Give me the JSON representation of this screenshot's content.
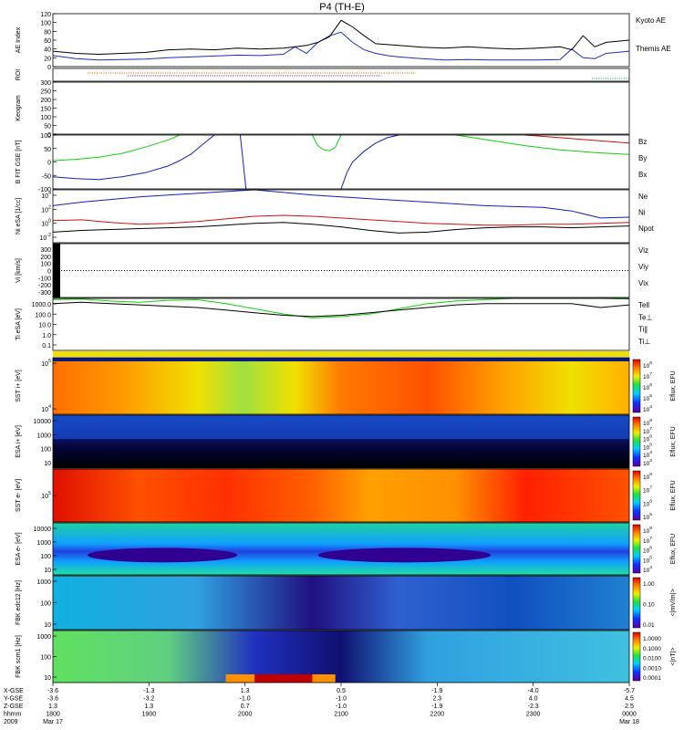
{
  "title": "P4 (TH-E)",
  "colors": {
    "kyoto": "#1a2fbf",
    "themis": "#000000",
    "red": "#d01010",
    "green": "#10d010",
    "blue": "#1020c0",
    "roi_a": "#e07a00",
    "roi_b": "#7a3a9a",
    "roi_c": "#20b0a0"
  },
  "chart_data": [
    {
      "type": "line",
      "name": "ae",
      "ylabel": "AE Index",
      "ylim": [
        0,
        120
      ],
      "yticks": [
        "0",
        "20",
        "40",
        "60",
        "80",
        "100",
        "120"
      ],
      "series": [
        {
          "name": "Kyoto AE",
          "color": "kyoto",
          "x": [
            0,
            0.04,
            0.08,
            0.12,
            0.16,
            0.2,
            0.24,
            0.28,
            0.32,
            0.36,
            0.4,
            0.42,
            0.44,
            0.46,
            0.48,
            0.5,
            0.52,
            0.54,
            0.56,
            0.58,
            0.6,
            0.64,
            0.68,
            0.72,
            0.76,
            0.8,
            0.84,
            0.88,
            0.9,
            0.92,
            0.94,
            0.96,
            1
          ],
          "y": [
            25,
            18,
            15,
            16,
            17,
            20,
            22,
            24,
            26,
            25,
            28,
            45,
            30,
            55,
            70,
            78,
            55,
            38,
            30,
            25,
            22,
            18,
            15,
            16,
            15,
            15,
            15,
            16,
            40,
            20,
            18,
            30,
            35
          ]
        },
        {
          "name": "Themis AE",
          "color": "themis",
          "x": [
            0,
            0.04,
            0.08,
            0.12,
            0.16,
            0.2,
            0.24,
            0.28,
            0.32,
            0.36,
            0.4,
            0.44,
            0.46,
            0.48,
            0.5,
            0.52,
            0.54,
            0.56,
            0.6,
            0.64,
            0.68,
            0.72,
            0.76,
            0.8,
            0.84,
            0.88,
            0.9,
            0.92,
            0.94,
            0.96,
            1
          ],
          "y": [
            35,
            30,
            28,
            30,
            32,
            38,
            40,
            38,
            42,
            40,
            42,
            48,
            55,
            68,
            105,
            90,
            70,
            52,
            48,
            44,
            42,
            45,
            42,
            40,
            42,
            45,
            38,
            70,
            45,
            55,
            60
          ]
        }
      ]
    },
    {
      "type": "scatter",
      "name": "roi",
      "ylabel": "ROI",
      "rows": [
        {
          "color": "roi_a",
          "x_start": 0.06,
          "x_end": 0.63
        },
        {
          "color": "roi_b",
          "x_start": 0.13,
          "x_end": 0.57
        },
        {
          "color": "roi_c",
          "x_start": 0.935,
          "x_end": 1.0
        }
      ]
    },
    {
      "type": "line",
      "name": "keogram",
      "ylabel": "Keogram",
      "ylim": [
        0,
        300
      ],
      "yticks": [
        "0",
        "50",
        "100",
        "150",
        "200",
        "250",
        "300"
      ],
      "series": []
    },
    {
      "type": "line",
      "name": "bfit",
      "ylabel": "B FIT GSE [nT]",
      "ylim": [
        -100,
        100
      ],
      "yticks": [
        "-100",
        "-50",
        "0",
        "50",
        "100"
      ],
      "legend": [
        "Bz",
        "By",
        "Bx"
      ],
      "series": [
        {
          "name": "By",
          "color": "green",
          "x": [
            0,
            0.04,
            0.08,
            0.12,
            0.16,
            0.2,
            0.22
          ],
          "y": [
            5,
            10,
            18,
            32,
            55,
            82,
            100
          ]
        },
        {
          "name": "Bx",
          "color": "blue",
          "x": [
            0,
            0.04,
            0.08,
            0.12,
            0.16,
            0.2,
            0.22,
            0.24,
            0.26,
            0.28
          ],
          "y": [
            -55,
            -62,
            -65,
            -55,
            -40,
            -15,
            5,
            30,
            65,
            100
          ]
        },
        {
          "name": "Bx",
          "color": "blue",
          "x": [
            0.325,
            0.33,
            0.335
          ],
          "y": [
            100,
            0,
            -100
          ]
        },
        {
          "name": "By",
          "color": "green",
          "x": [
            0.45,
            0.46,
            0.47,
            0.48,
            0.49,
            0.5
          ],
          "y": [
            100,
            60,
            45,
            42,
            55,
            100
          ]
        },
        {
          "name": "Bx",
          "color": "blue",
          "x": [
            0.5,
            0.51,
            0.52,
            0.54,
            0.56,
            0.58,
            0.6
          ],
          "y": [
            -100,
            -40,
            0,
            40,
            70,
            90,
            100
          ]
        },
        {
          "name": "By",
          "color": "green",
          "x": [
            0.7,
            0.76,
            0.82,
            0.88,
            0.94,
            1
          ],
          "y": [
            100,
            80,
            60,
            45,
            35,
            28
          ]
        },
        {
          "name": "Bz",
          "color": "red",
          "x": [
            0.82,
            0.88,
            0.94,
            1
          ],
          "y": [
            100,
            90,
            80,
            70
          ]
        }
      ]
    },
    {
      "type": "line",
      "name": "density",
      "ylabel": "Ni eSA [1/cc]",
      "ylim": [
        -2,
        4
      ],
      "yticks": [
        "10^4",
        "10^2",
        "10^0",
        "10^-2"
      ],
      "legend": [
        "Ne",
        "Ni",
        "Npot"
      ],
      "series": [
        {
          "name": "Ne",
          "color": "blue",
          "x": [
            0,
            0.05,
            0.1,
            0.15,
            0.2,
            0.25,
            0.3,
            0.35,
            0.4,
            0.45,
            0.5,
            0.55,
            0.6,
            0.65,
            0.7,
            0.75,
            0.8,
            0.85,
            0.9,
            0.95,
            1
          ],
          "y": [
            2.2,
            2.6,
            2.9,
            3.2,
            3.4,
            3.6,
            3.8,
            4.0,
            3.7,
            3.4,
            3.2,
            3.0,
            2.8,
            2.6,
            2.4,
            2.2,
            2.1,
            2.0,
            1.6,
            0.8,
            0.9
          ]
        },
        {
          "name": "Ni",
          "color": "red",
          "x": [
            0,
            0.05,
            0.1,
            0.15,
            0.2,
            0.25,
            0.3,
            0.35,
            0.4,
            0.45,
            0.5,
            0.55,
            0.6,
            0.65,
            0.7,
            0.75,
            0.8,
            0.85,
            0.9,
            0.95,
            1
          ],
          "y": [
            0.5,
            0.6,
            0.3,
            0.1,
            0.2,
            0.4,
            0.7,
            1.0,
            1.1,
            1.0,
            0.8,
            0.6,
            0.4,
            0.2,
            0.1,
            0.0,
            0.0,
            0.1,
            0.1,
            0.2,
            0.3
          ]
        },
        {
          "name": "Npot",
          "color": "themis",
          "x": [
            0,
            0.05,
            0.1,
            0.15,
            0.2,
            0.25,
            0.3,
            0.35,
            0.4,
            0.45,
            0.5,
            0.55,
            0.6,
            0.65,
            0.7,
            0.75,
            0.8,
            0.85,
            0.9,
            0.95,
            1
          ],
          "y": [
            -0.8,
            -0.6,
            -0.5,
            -0.4,
            -0.3,
            -0.2,
            0.0,
            0.2,
            0.3,
            0.1,
            -0.2,
            -0.6,
            -0.9,
            -0.8,
            -0.5,
            -0.3,
            -0.2,
            -0.2,
            -0.3,
            -0.2,
            -0.1
          ]
        }
      ]
    },
    {
      "type": "line",
      "name": "velocity",
      "ylabel": "Vi [km/s]",
      "ylim": [
        -300,
        300
      ],
      "yticks": [
        "300",
        "200",
        "100",
        "0",
        "-100",
        "-200",
        "-300"
      ],
      "legend": [
        "Viz",
        "Viy",
        "Vix"
      ],
      "series": []
    },
    {
      "type": "line",
      "name": "temperature",
      "ylabel": "Ti eSA [eV]",
      "ylim": [
        -1,
        3
      ],
      "yticks": [
        "1000.0",
        "100.0",
        "10.0",
        "1.0",
        "0.1"
      ],
      "legend": [
        "Tell",
        "Te⊥",
        "Ti∥",
        "Ti⊥"
      ],
      "series": [
        {
          "name": "Ti∥",
          "color": "green",
          "x": [
            0,
            0.05,
            0.1,
            0.15,
            0.2,
            0.25,
            0.3,
            0.35,
            0.4,
            0.45,
            0.5,
            0.55,
            0.6,
            0.65,
            0.7,
            0.75,
            0.8,
            0.85,
            0.9,
            0.95,
            1
          ],
          "y": [
            2.9,
            2.95,
            2.8,
            2.7,
            2.85,
            2.9,
            2.6,
            2.2,
            1.8,
            1.5,
            1.6,
            1.8,
            2.2,
            2.6,
            2.8,
            2.9,
            3.0,
            3.0,
            3.0,
            3.0,
            2.95
          ]
        },
        {
          "name": "Tell",
          "color": "themis",
          "x": [
            0,
            0.05,
            0.1,
            0.15,
            0.2,
            0.25,
            0.3,
            0.35,
            0.4,
            0.45,
            0.5,
            0.55,
            0.6,
            0.65,
            0.7,
            0.75,
            0.8,
            0.85,
            0.9,
            0.95,
            1
          ],
          "y": [
            2.6,
            2.7,
            2.6,
            2.5,
            2.4,
            2.3,
            2.1,
            1.9,
            1.7,
            1.6,
            1.7,
            1.9,
            2.1,
            2.3,
            2.5,
            2.6,
            2.6,
            2.6,
            2.6,
            2.3,
            2.5
          ]
        }
      ]
    },
    {
      "type": "heatmap",
      "name": "sst-ion",
      "ylabel": "SST i+ [eV]",
      "yticks": [
        "10^5",
        "10^4"
      ]
    },
    {
      "type": "heatmap",
      "name": "esa-ion",
      "ylabel": "ESA i+ [eV]",
      "yticks": [
        "10000",
        "1000",
        "100",
        "10"
      ]
    },
    {
      "type": "heatmap",
      "name": "sst-elec",
      "ylabel": "SST e- [eV]",
      "yticks": [
        "10^5"
      ]
    },
    {
      "type": "heatmap",
      "name": "esa-elec",
      "ylabel": "ESA e- [eV]",
      "yticks": [
        "10000",
        "1000",
        "100",
        "10"
      ]
    },
    {
      "type": "heatmap",
      "name": "fbk-edc",
      "ylabel": "FBK edc12 [Hz]",
      "yticks": [
        "1000",
        "100",
        "10"
      ]
    },
    {
      "type": "heatmap",
      "name": "fbk-scm",
      "ylabel": "FBK scm1 [Hz]",
      "yticks": [
        "1000",
        "100",
        "10"
      ]
    }
  ],
  "colorbars": [
    {
      "name": "eflux-1",
      "label": "Eflux, EFU",
      "ticks": [
        "10^8",
        "10^7",
        "10^6",
        "10^5",
        "10^4"
      ]
    },
    {
      "name": "eflux-2",
      "label": "Eflux, EFU",
      "ticks": [
        "10^8",
        "10^7",
        "10^6",
        "10^5",
        "10^4",
        "10^3"
      ]
    },
    {
      "name": "eflux-3",
      "label": "Eflux, EFU",
      "ticks": [
        "10^8",
        "10^7",
        "10^6",
        "10^5"
      ]
    },
    {
      "name": "eflux-4",
      "label": "Eflux, EFU",
      "ticks": [
        "10^8",
        "10^7",
        "10^6",
        "10^5",
        "10^4"
      ]
    },
    {
      "name": "mvm-1",
      "label": "<|mV/m|>",
      "ticks": [
        "1.00",
        "0.10",
        "0.01"
      ]
    },
    {
      "name": "mvm-2",
      "label": "<|nT|>",
      "ticks": [
        "1.0000",
        "0.1000",
        "0.0100",
        "0.0010",
        "0.0001"
      ]
    }
  ],
  "xaxis": {
    "row_labels": [
      "X-GSE",
      "Y-GSE",
      "Z-GSE",
      "hhmm",
      "2009"
    ],
    "columns": [
      {
        "vals": [
          "-3.6",
          "-3.6",
          "1.3",
          "1800",
          "Mar 17"
        ]
      },
      {
        "vals": [
          "-1.3",
          "-3.2",
          "1.3",
          "1900",
          ""
        ]
      },
      {
        "vals": [
          "1.3",
          "-1.0",
          "0.7",
          "2000",
          ""
        ]
      },
      {
        "vals": [
          "0.5",
          "-1.0",
          "-1.0",
          "2100",
          ""
        ]
      },
      {
        "vals": [
          "-1.9",
          "2.3",
          "-1.9",
          "2200",
          ""
        ]
      },
      {
        "vals": [
          "-4.0",
          "4.0",
          "-2.3",
          "2300",
          ""
        ]
      },
      {
        "vals": [
          "-5.7",
          "4.5",
          "2.5",
          "0000",
          "Mar 18"
        ]
      }
    ]
  }
}
